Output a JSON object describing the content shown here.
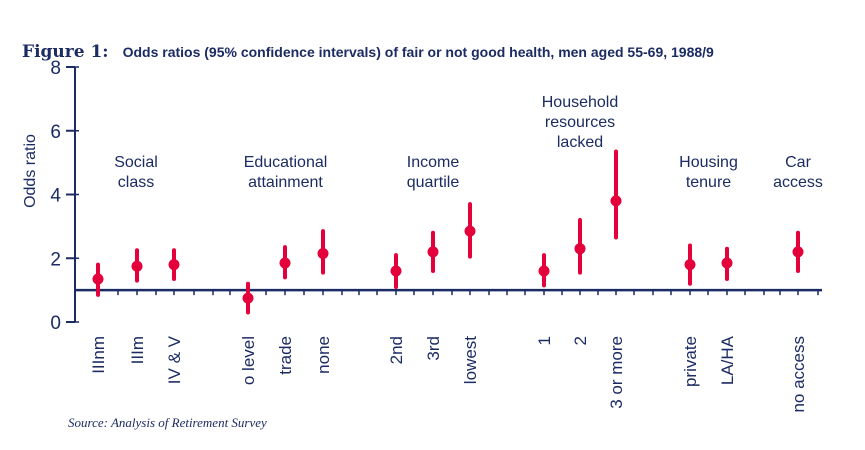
{
  "figure": {
    "label": "Figure 1:",
    "caption": "Odds ratios (95% confidence intervals) of fair or not good health, men aged 55-69, 1988/9"
  },
  "source": "Source: Analysis of Retirement Survey",
  "colors": {
    "text": "#1b2b63",
    "marker": "#e4003a",
    "axis": "#1b2b63"
  },
  "chart_data": {
    "type": "scatter",
    "title": "Odds ratios (95% confidence intervals) of fair or not good health, men aged 55-69, 1988/9",
    "ylabel": "Odds ratio",
    "ylim": [
      0,
      8
    ],
    "yticks": [
      0,
      2,
      4,
      6,
      8
    ],
    "reference_line": 1,
    "groups": [
      {
        "name": "Social class",
        "label_lines": [
          "Social",
          "class"
        ],
        "points": [
          {
            "label": "IIInm",
            "or": 1.35,
            "lo": 0.85,
            "hi": 1.8
          },
          {
            "label": "IIIm",
            "or": 1.75,
            "lo": 1.3,
            "hi": 2.25
          },
          {
            "label": "IV & V",
            "or": 1.8,
            "lo": 1.35,
            "hi": 2.25
          }
        ]
      },
      {
        "name": "Educational attainment",
        "label_lines": [
          "Educational",
          "attainment"
        ],
        "points": [
          {
            "label": "o level",
            "or": 0.75,
            "lo": 0.3,
            "hi": 1.2
          },
          {
            "label": "trade",
            "or": 1.85,
            "lo": 1.4,
            "hi": 2.35
          },
          {
            "label": "none",
            "or": 2.15,
            "lo": 1.55,
            "hi": 2.85
          }
        ]
      },
      {
        "name": "Income quartile",
        "label_lines": [
          "Income",
          "quartile"
        ],
        "points": [
          {
            "label": "2nd",
            "or": 1.6,
            "lo": 1.1,
            "hi": 2.1
          },
          {
            "label": "3rd",
            "or": 2.2,
            "lo": 1.6,
            "hi": 2.8
          },
          {
            "label": "lowest",
            "or": 2.85,
            "lo": 2.05,
            "hi": 3.7
          }
        ]
      },
      {
        "name": "Household resources lacked",
        "label_lines": [
          "Household",
          "resources",
          "lacked"
        ],
        "points": [
          {
            "label": "1",
            "or": 1.6,
            "lo": 1.15,
            "hi": 2.1
          },
          {
            "label": "2",
            "or": 2.3,
            "lo": 1.55,
            "hi": 3.2
          },
          {
            "label": "3 or more",
            "or": 3.8,
            "lo": 2.65,
            "hi": 5.35
          }
        ]
      },
      {
        "name": "Housing tenure",
        "label_lines": [
          "Housing",
          "tenure"
        ],
        "points": [
          {
            "label": "private",
            "or": 1.8,
            "lo": 1.2,
            "hi": 2.4
          },
          {
            "label": "LA/HA",
            "or": 1.85,
            "lo": 1.35,
            "hi": 2.3
          }
        ]
      },
      {
        "name": "Car access",
        "label_lines": [
          "Car",
          "access"
        ],
        "points": [
          {
            "label": "no access",
            "or": 2.2,
            "lo": 1.6,
            "hi": 2.8
          }
        ]
      }
    ]
  }
}
